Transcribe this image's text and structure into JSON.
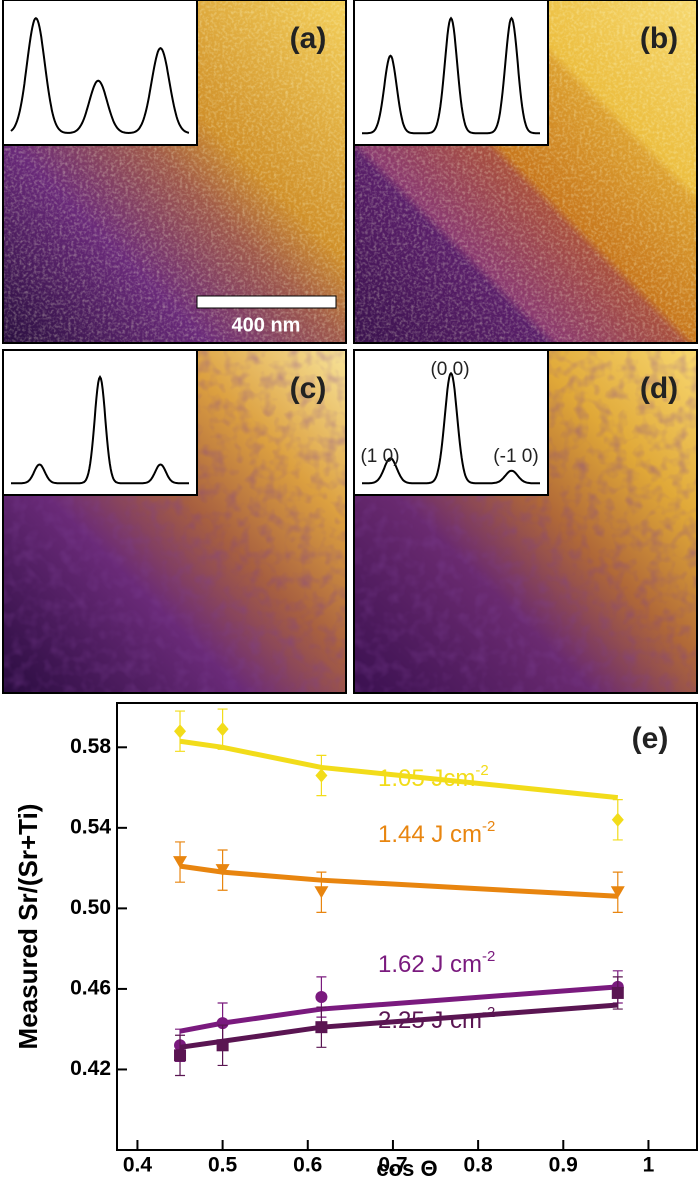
{
  "panels": [
    {
      "label": "(a)",
      "scale_bar": "400 nm"
    },
    {
      "label": "(b)"
    },
    {
      "label": "(c)"
    },
    {
      "label": "(d)",
      "peak_labels": [
        "(1 0)",
        "(0 0)",
        "(-1 0)"
      ]
    }
  ],
  "chart_data": {
    "type": "scatter",
    "panel_label": "(e)",
    "x_label": "cos Θ",
    "y_label": "Measured Sr/(Sr+Ti)",
    "x": [
      0.45,
      0.5,
      0.616,
      0.964
    ],
    "xlim": [
      0.376,
      1.057
    ],
    "xticks": [
      0.4,
      0.5,
      0.6,
      0.7,
      0.8,
      0.9,
      1.0
    ],
    "ylim": [
      0.38,
      0.602
    ],
    "yticks": [
      0.42,
      0.46,
      {
        "value": 0.5,
        "label": "0.50"
      },
      0.54,
      0.58
    ],
    "series": [
      {
        "name": "1.05 Jcm",
        "name_sup": "-2",
        "color": "#f2dc1a",
        "marker": "diamond",
        "values": [
          0.588,
          0.589,
          0.566,
          0.544
        ],
        "errors": [
          0.01,
          0.01,
          0.01,
          0.01
        ],
        "fit": [
          0.583,
          0.58,
          0.57,
          0.555
        ]
      },
      {
        "name": "1.44 J cm",
        "name_sup": "-2",
        "color": "#e8850f",
        "marker": "triangle-down",
        "values": [
          0.523,
          0.519,
          0.508,
          0.508
        ],
        "errors": [
          0.01,
          0.01,
          0.01,
          0.01
        ],
        "fit": [
          0.521,
          0.518,
          0.514,
          0.506
        ]
      },
      {
        "name": "1.62 J cm",
        "name_sup": "-2",
        "color": "#7a1a7e",
        "marker": "circle",
        "values": [
          0.432,
          0.443,
          0.456,
          0.461
        ],
        "errors": [
          0.008,
          0.01,
          0.01,
          0.008
        ],
        "fit": [
          0.439,
          0.443,
          0.45,
          0.461
        ]
      },
      {
        "name": "2.25 J cm",
        "name_sup": "-2",
        "color": "#5a1552",
        "marker": "square",
        "values": [
          0.427,
          0.432,
          0.441,
          0.458
        ],
        "errors": [
          0.01,
          0.01,
          0.01,
          0.008
        ],
        "fit": [
          0.431,
          0.434,
          0.441,
          0.452
        ]
      }
    ]
  }
}
